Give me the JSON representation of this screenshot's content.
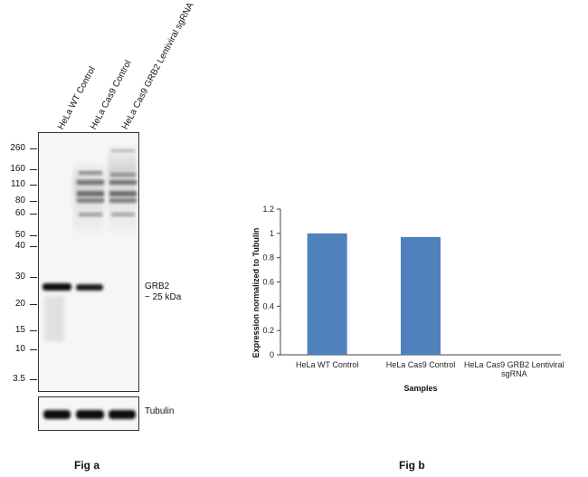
{
  "fig_a": {
    "label": "Fig a",
    "lanes": [
      "HeLa WT Control",
      "HeLa Cas9 Control",
      "HeLa Cas9 GRB2 Lentiviral sgRNA"
    ],
    "mw_markers": [
      "260",
      "160",
      "110",
      "80",
      "60",
      "50",
      "40",
      "30",
      "20",
      "15",
      "10",
      "3.5"
    ],
    "band_label_line1": "GRB2",
    "band_label_line2": "~ 25 kDa",
    "loading_control": "Tubulin"
  },
  "fig_b": {
    "label": "Fig b"
  },
  "chart_data": {
    "type": "bar",
    "categories": [
      "HeLa WT Control",
      "HeLa Cas9 Control",
      "HeLa Cas9 GRB2 Lentiviral sgRNA"
    ],
    "values": [
      1.0,
      0.97,
      0.0
    ],
    "xlabel": "Samples",
    "ylabel": "Expression normalized to Tubulin",
    "ylim": [
      0,
      1.2
    ],
    "yticks": [
      "0",
      "0.2",
      "0.4",
      "0.6",
      "0.8",
      "1",
      "1.2"
    ],
    "bar_color": "#4f81bd",
    "grid": false
  }
}
